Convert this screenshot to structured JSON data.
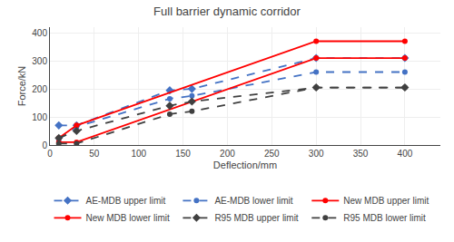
{
  "chart_data": {
    "type": "line",
    "title": "Full barrier dynamic corridor",
    "xlabel": "Deflection/mm",
    "ylabel": "Force/kN",
    "xlim": [
      0,
      440
    ],
    "ylim": [
      0,
      420
    ],
    "xticks": [
      0,
      50,
      100,
      150,
      200,
      250,
      300,
      350,
      400
    ],
    "yticks": [
      0,
      100,
      200,
      300,
      400
    ],
    "grid": true,
    "legend": "below",
    "series": [
      {
        "name": "AE-MDB upper limit",
        "color": "#4472C4",
        "line_style": "dashed",
        "marker": "diamond",
        "x": [
          10,
          30,
          135,
          160,
          300,
          400
        ],
        "values": [
          70,
          70,
          195,
          200,
          310,
          310
        ]
      },
      {
        "name": "AE-MDB lower limit",
        "color": "#4472C4",
        "line_style": "dashed",
        "marker": "circle",
        "x": [
          10,
          30,
          135,
          160,
          300,
          400
        ],
        "values": [
          20,
          65,
          165,
          175,
          260,
          260
        ]
      },
      {
        "name": "New MDB upper limit",
        "color": "#FF0000",
        "line_style": "solid",
        "marker": "circle",
        "x": [
          10,
          30,
          300,
          400
        ],
        "values": [
          25,
          70,
          370,
          370
        ]
      },
      {
        "name": "New MDB lower limit",
        "color": "#FF0000",
        "line_style": "solid",
        "marker": "circle",
        "x": [
          10,
          30,
          300,
          400
        ],
        "values": [
          10,
          10,
          310,
          310
        ]
      },
      {
        "name": "R95 MDB upper limit",
        "color": "#404040",
        "line_style": "dashed",
        "marker": "diamond",
        "x": [
          10,
          30,
          135,
          160,
          300,
          400
        ],
        "values": [
          25,
          50,
          140,
          155,
          205,
          205
        ]
      },
      {
        "name": "R95 MDB lower limit",
        "color": "#404040",
        "line_style": "dashed",
        "marker": "circle",
        "x": [
          10,
          30,
          135,
          160,
          300,
          400
        ],
        "values": [
          5,
          5,
          110,
          120,
          205,
          205
        ]
      }
    ]
  }
}
